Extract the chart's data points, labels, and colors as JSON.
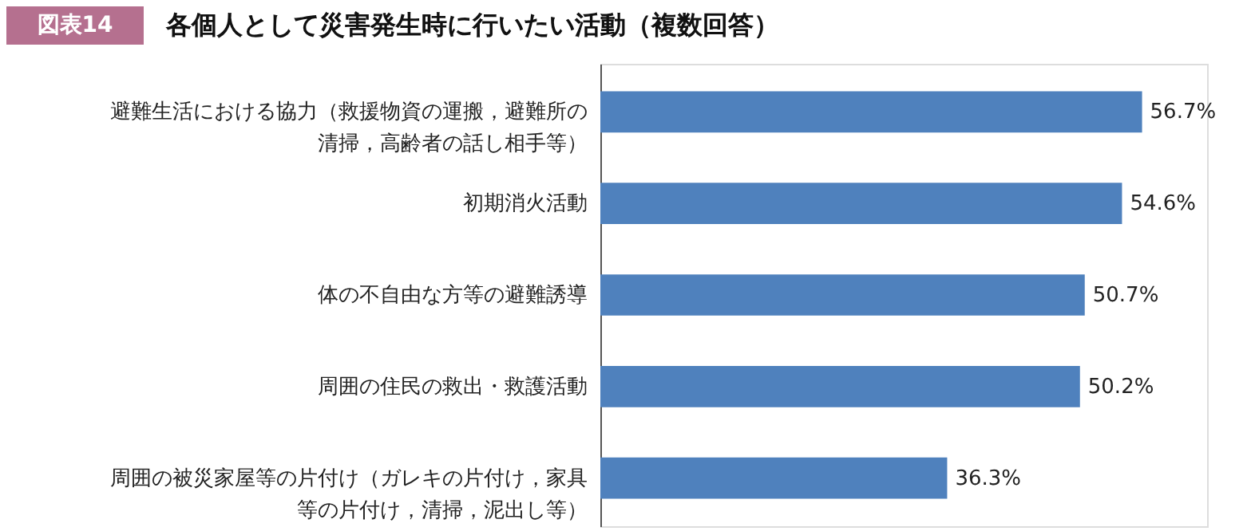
{
  "chart_data": {
    "type": "bar",
    "orientation": "horizontal",
    "title": "各個人として災害発生時に行いたい活動（複数回答）",
    "annotations": [
      "図表14"
    ],
    "categories": [
      "避難生活における協力（救援物資の運搬，避難所の清掃，高齢者の話し相手等）",
      "初期消火活動",
      "体の不自由な方等の避難誘導",
      "周囲の住民の救出・救護活動",
      "周囲の被災家屋等の片付け（ガレキの片付け，家具等の片付け，清掃，泥出し等）"
    ],
    "values": [
      56.7,
      54.6,
      50.7,
      50.2,
      36.3
    ],
    "value_labels": [
      "56.7%",
      "54.6%",
      "50.7%",
      "50.2%",
      "36.3%"
    ],
    "color": "#4f81bd"
  }
}
